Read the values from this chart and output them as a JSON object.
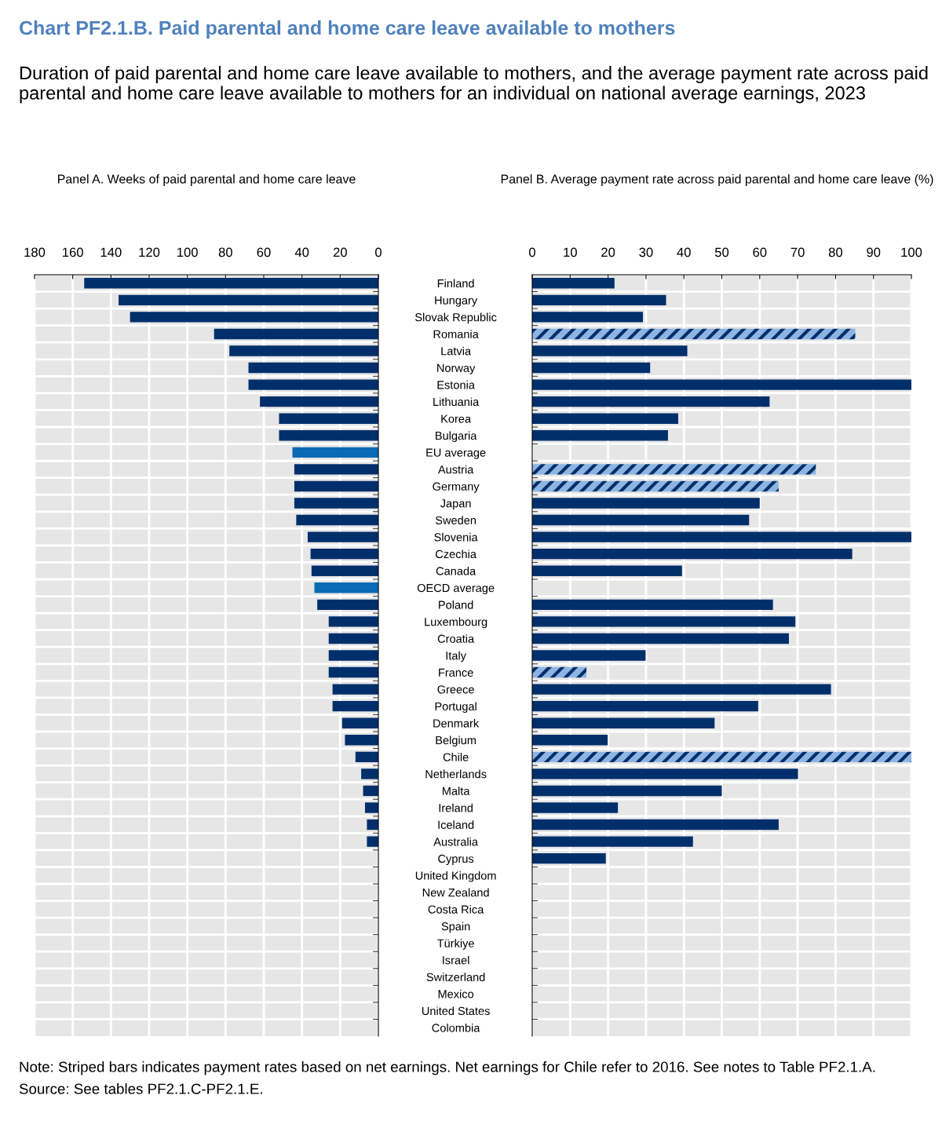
{
  "chart_data": [
    {
      "type": "bar",
      "orientation": "horizontal",
      "title": "Chart PF2.1.B. Paid parental and home care leave available to mothers",
      "subtitle": "Duration of paid parental and home care leave available to mothers, and the average payment rate across paid parental and home care leave available to mothers for an individual on national average earnings, 2023",
      "xlabel": "Panel A. Weeks of paid parental and home care leave",
      "categories": [
        "Finland",
        "Hungary",
        "Slovak Republic",
        "Romania",
        "Latvia",
        "Norway",
        "Estonia",
        "Lithuania",
        "Korea",
        "Bulgaria",
        "EU average",
        "Austria",
        "Germany",
        "Japan",
        "Sweden",
        "Slovenia",
        "Czechia",
        "Canada",
        "OECD average",
        "Poland",
        "Luxembourg",
        "Croatia",
        "Italy",
        "France",
        "Greece",
        "Portugal",
        "Denmark",
        "Belgium",
        "Chile",
        "Netherlands",
        "Malta",
        "Ireland",
        "Iceland",
        "Australia",
        "Cyprus",
        "United Kingdom",
        "New Zealand",
        "Costa Rica",
        "Spain",
        "Türkiye",
        "Israel",
        "Switzerland",
        "Mexico",
        "United States",
        "Colombia"
      ],
      "series": [
        {
          "color": "#002f6c",
          "values": [
            154,
            136,
            130,
            86,
            78,
            68,
            68,
            62,
            52,
            52,
            null,
            44,
            44,
            44,
            43,
            37,
            35.5,
            35,
            null,
            32,
            26,
            26,
            26,
            26,
            24,
            24,
            19,
            17.5,
            12,
            9,
            8,
            7,
            6,
            6,
            null,
            null,
            null,
            null,
            null,
            null,
            null,
            null,
            null,
            null,
            null
          ]
        },
        {
          "color": "#0a6ab4",
          "values": [
            null,
            null,
            null,
            null,
            null,
            null,
            null,
            null,
            null,
            null,
            45,
            null,
            null,
            null,
            null,
            null,
            null,
            null,
            33.5,
            null,
            null,
            null,
            null,
            null,
            null,
            null,
            null,
            null,
            null,
            null,
            null,
            null,
            null,
            null,
            null,
            null,
            null,
            null,
            null,
            null,
            null,
            null,
            null,
            null,
            null
          ]
        }
      ],
      "xlim": [
        180,
        0
      ],
      "xticks": [
        180,
        160,
        140,
        120,
        100,
        80,
        60,
        40,
        20,
        0
      ],
      "grid": true,
      "annotations": [
        "Note: Striped bars indicates payment rates based on net earnings. Net earnings for Chile refer to 2016. See notes to Table PF2.1.A.",
        "Source: See tables PF2.1.C-PF2.1.E."
      ]
    },
    {
      "type": "bar",
      "orientation": "horizontal",
      "xlabel": "Panel B. Average payment rate across paid parental and home care leave (%)",
      "categories": [
        null,
        null,
        null,
        null,
        null,
        null,
        null,
        null,
        null,
        null,
        null,
        null,
        null,
        null,
        null,
        null,
        null,
        null,
        null,
        null,
        null,
        null,
        null,
        null,
        null,
        null,
        null,
        null,
        null,
        null,
        null,
        null,
        null,
        null,
        null,
        null,
        null,
        null,
        null,
        null,
        null,
        null,
        null,
        null,
        null
      ],
      "series": [
        {
          "color": "#002f6c",
          "values": [
            21.7,
            35.3,
            29.2,
            85.2,
            40.9,
            31.1,
            100,
            62.6,
            38.5,
            35.8,
            null,
            74.8,
            65,
            60,
            57.2,
            100,
            84.4,
            39.5,
            null,
            63.5,
            69.4,
            67.7,
            29.9,
            14.3,
            78.8,
            59.6,
            48.1,
            19.9,
            100,
            70.1,
            50,
            22.6,
            65,
            42.4,
            19.4,
            null,
            null,
            null,
            null,
            null,
            null,
            null,
            null,
            null,
            null
          ],
          "colors": [
            "#002f6c",
            "#002f6c",
            "#002f6c",
            "#8db4e2",
            "#002f6c",
            "#002f6c",
            "#002f6c",
            "#002f6c",
            "#002f6c",
            "#002f6c",
            "#002f6c",
            "#8db4e2",
            "#8db4e2",
            "#002f6c",
            "#002f6c",
            "#002f6c",
            "#002f6c",
            "#002f6c",
            "#002f6c",
            "#002f6c",
            "#002f6c",
            "#002f6c",
            "#002f6c",
            "#8db4e2",
            "#002f6c",
            "#002f6c",
            "#002f6c",
            "#002f6c",
            "#8db4e2",
            "#002f6c",
            "#002f6c",
            "#002f6c",
            "#002f6c",
            "#002f6c",
            "#002f6c",
            "#002f6c",
            "#002f6c",
            "#002f6c",
            "#002f6c",
            "#002f6c",
            "#002f6c",
            "#002f6c",
            "#002f6c",
            "#002f6c",
            "#002f6c"
          ]
        }
      ],
      "xlim": [
        0,
        100
      ],
      "xticks": [
        0,
        10,
        20,
        30,
        40,
        50,
        60,
        70,
        80,
        90,
        100
      ],
      "grid": true
    }
  ]
}
